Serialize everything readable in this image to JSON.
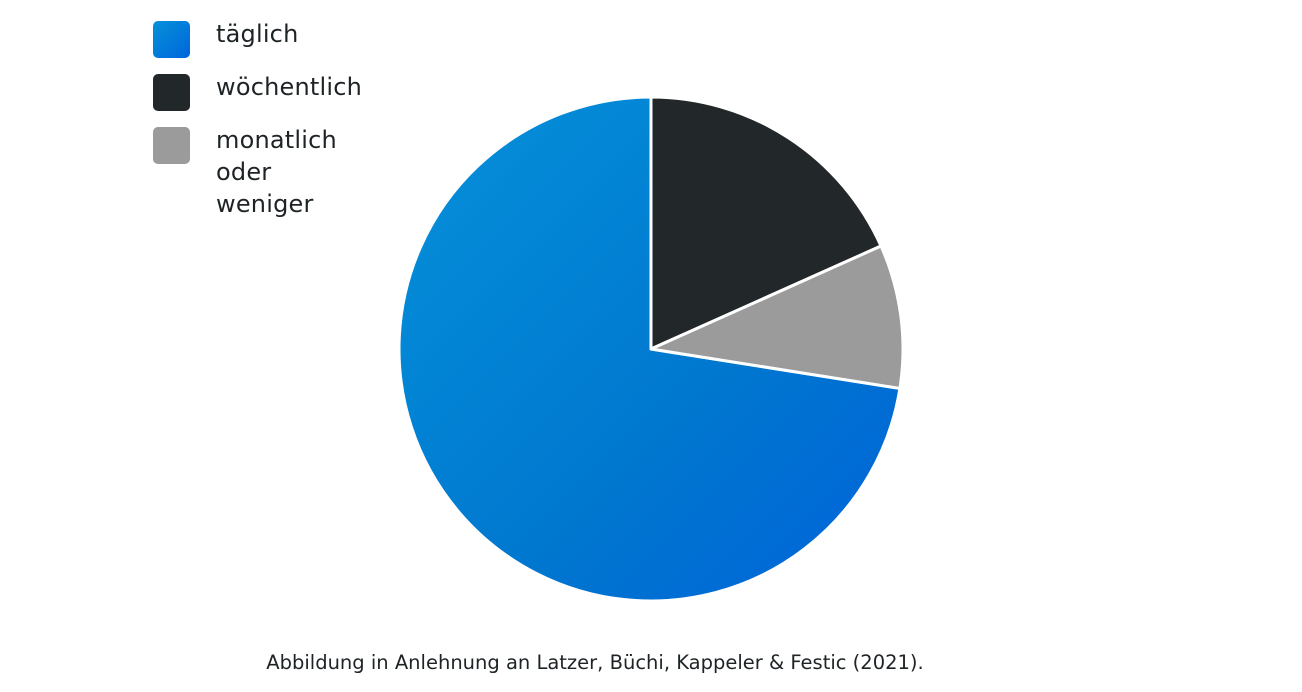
{
  "chart_data": {
    "type": "pie",
    "slices": [
      {
        "label": "täglich",
        "value": 72.5,
        "color": "#0072d6"
      },
      {
        "label": "wöchentlich",
        "value": 18.3,
        "color": "#222829"
      },
      {
        "label": "monatlich\noder weniger",
        "value": 9.2,
        "color": "#9b9b9b"
      }
    ],
    "start": "top",
    "direction": "clockwise",
    "legend_position": "top-left"
  },
  "caption": "Abbildung in Anlehnung an Latzer, Büchi, Kappeler & Festic (2021)."
}
